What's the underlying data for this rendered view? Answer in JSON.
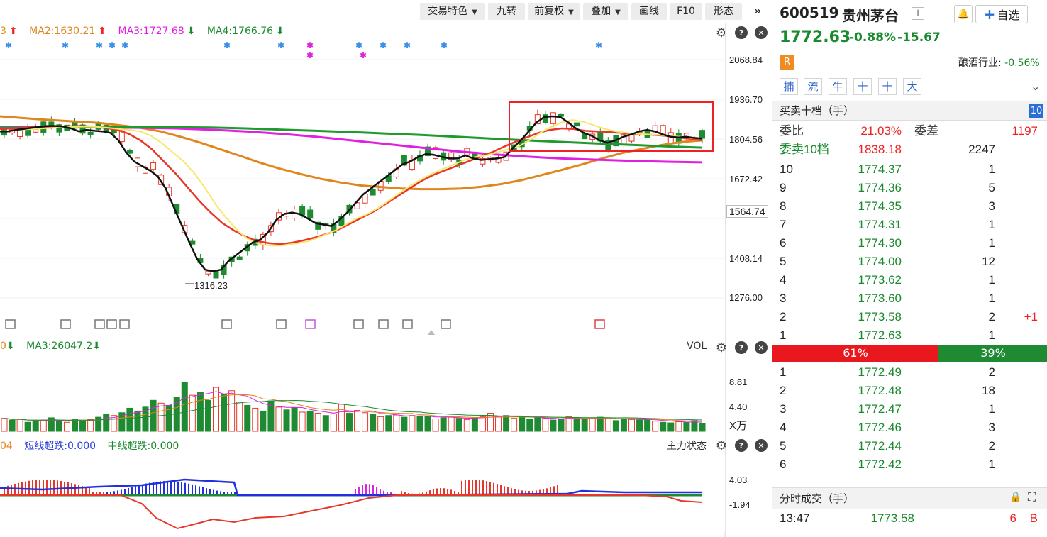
{
  "toolbar": {
    "items": [
      {
        "label": "交易特色",
        "dropdown": true
      },
      {
        "label": "九转",
        "dropdown": false
      },
      {
        "label": "前复权",
        "dropdown": true
      },
      {
        "label": "叠加",
        "dropdown": true
      },
      {
        "label": "画线",
        "dropdown": false
      },
      {
        "label": "F10",
        "dropdown": false
      },
      {
        "label": "形态",
        "dropdown": false
      }
    ],
    "more_icon": "double-chevron-right-icon"
  },
  "kline": {
    "ma_prefix": "3",
    "ma2": "MA2:1630.21",
    "ma3": "MA3:1727.68",
    "ma4": "MA4:1766.76",
    "y_ticks": [
      "2068.84",
      "1936.70",
      "1804.56",
      "1672.42",
      "1564.74",
      "1408.14",
      "1276.00"
    ],
    "current_price_tag": "1564.74",
    "low_annotation": "1316.23",
    "colors": {
      "up": "#e8372a",
      "down": "#1e8a32",
      "ma5": "#111111",
      "ma10": "#f5e96a",
      "ma20": "#e8372a",
      "ma60": "#e0861c",
      "ma120": "#1e9a2e",
      "ma250": "#e020e0"
    },
    "series": {
      "ma5": [
        1830,
        1830,
        1835,
        1838,
        1842,
        1845,
        1848,
        1848,
        1846,
        1840,
        1830,
        1835,
        1832,
        1830,
        1825,
        1800,
        1760,
        1730,
        1715,
        1700,
        1680,
        1640,
        1580,
        1520,
        1460,
        1405,
        1370,
        1365,
        1370,
        1400,
        1420,
        1440,
        1460,
        1470,
        1495,
        1535,
        1555,
        1560,
        1555,
        1540,
        1525,
        1520,
        1515,
        1535,
        1560,
        1590,
        1620,
        1640,
        1660,
        1680,
        1700,
        1720,
        1730,
        1745,
        1755,
        1752,
        1745,
        1740,
        1740,
        1750,
        1740,
        1735,
        1738,
        1740,
        1745,
        1775,
        1800,
        1830,
        1860,
        1878,
        1880,
        1878,
        1860,
        1840,
        1825,
        1815,
        1800,
        1792,
        1800,
        1812,
        1820,
        1830,
        1835,
        1830,
        1820,
        1812,
        1810,
        1812,
        1808,
        1806
      ],
      "ma10": [
        1830,
        1832,
        1836,
        1838,
        1840,
        1842,
        1845,
        1845,
        1846,
        1845,
        1842,
        1838,
        1835,
        1830,
        1815,
        1790,
        1760,
        1730,
        1690,
        1640,
        1585,
        1540,
        1500,
        1470,
        1455,
        1450,
        1450,
        1455,
        1460,
        1470,
        1485,
        1500,
        1520,
        1540,
        1555,
        1575,
        1600,
        1625,
        1650,
        1670,
        1690,
        1705,
        1720,
        1735,
        1745,
        1750,
        1760,
        1770,
        1780,
        1800,
        1825,
        1845,
        1860,
        1868,
        1862,
        1850,
        1838,
        1830,
        1825,
        1822,
        1820,
        1818,
        1815,
        1812,
        1808,
        1805
      ],
      "ma20": [
        1838,
        1840,
        1842,
        1844,
        1845,
        1846,
        1847,
        1848,
        1846,
        1842,
        1835,
        1822,
        1800,
        1770,
        1730,
        1690,
        1645,
        1600,
        1560,
        1525,
        1500,
        1480,
        1465,
        1458,
        1455,
        1460,
        1468,
        1478,
        1490,
        1505,
        1525,
        1545,
        1565,
        1590,
        1615,
        1640,
        1665,
        1685,
        1700,
        1715,
        1730,
        1745,
        1760,
        1778,
        1795,
        1810,
        1825,
        1835,
        1840,
        1838,
        1832,
        1830,
        1828,
        1825,
        1822,
        1820,
        1818,
        1815,
        1810,
        1805,
        1800
      ],
      "ma60": [
        1880,
        1875,
        1870,
        1866,
        1862,
        1858,
        1850,
        1842,
        1830,
        1812,
        1792,
        1770,
        1748,
        1725,
        1705,
        1688,
        1672,
        1660,
        1650,
        1645,
        1640,
        1638,
        1638,
        1640,
        1646,
        1655,
        1668,
        1685,
        1702,
        1720,
        1740,
        1758,
        1772,
        1785,
        1795,
        1800
      ],
      "ma120": [
        1842,
        1843,
        1844,
        1845,
        1845,
        1844,
        1843,
        1840,
        1836,
        1832,
        1828,
        1823,
        1818,
        1812,
        1806,
        1800,
        1795,
        1790,
        1785,
        1780,
        1776
      ],
      "ma250": [
        1845,
        1845,
        1844,
        1843,
        1842,
        1840,
        1836,
        1830,
        1822,
        1812,
        1800,
        1788,
        1776,
        1764,
        1754,
        1746,
        1740,
        1736,
        1732,
        1729,
        1727
      ]
    }
  },
  "volume": {
    "ma_prefix": "0",
    "ma3": "MA3:26047.2",
    "label": "VOL",
    "y_ticks": [
      "8.81",
      "4.40"
    ],
    "unit": "X万",
    "bars": [
      {
        "v": 2.3,
        "up": true
      },
      {
        "v": 2.0,
        "up": false
      },
      {
        "v": 2.1,
        "up": true
      },
      {
        "v": 1.6,
        "up": false
      },
      {
        "v": 1.9,
        "up": false
      },
      {
        "v": 2.0,
        "up": true
      },
      {
        "v": 2.4,
        "up": false
      },
      {
        "v": 1.8,
        "up": false
      },
      {
        "v": 1.6,
        "up": true
      },
      {
        "v": 2.2,
        "up": false
      },
      {
        "v": 1.9,
        "up": false
      },
      {
        "v": 2.1,
        "up": true
      },
      {
        "v": 2.5,
        "up": false
      },
      {
        "v": 3.0,
        "up": false
      },
      {
        "v": 2.8,
        "up": true
      },
      {
        "v": 3.3,
        "up": false
      },
      {
        "v": 4.1,
        "up": false
      },
      {
        "v": 3.6,
        "up": false
      },
      {
        "v": 4.3,
        "up": false
      },
      {
        "v": 5.5,
        "up": false
      },
      {
        "v": 5.0,
        "up": true
      },
      {
        "v": 4.6,
        "up": false
      },
      {
        "v": 6.0,
        "up": false
      },
      {
        "v": 8.7,
        "up": false
      },
      {
        "v": 6.4,
        "up": true
      },
      {
        "v": 6.9,
        "up": false
      },
      {
        "v": 5.5,
        "up": false
      },
      {
        "v": 7.8,
        "up": true
      },
      {
        "v": 6.5,
        "up": false
      },
      {
        "v": 7.2,
        "up": true
      },
      {
        "v": 5.2,
        "up": true
      },
      {
        "v": 4.6,
        "up": false
      },
      {
        "v": 4.1,
        "up": true
      },
      {
        "v": 3.6,
        "up": false
      },
      {
        "v": 5.4,
        "up": false
      },
      {
        "v": 4.3,
        "up": true
      },
      {
        "v": 3.8,
        "up": false
      },
      {
        "v": 4.2,
        "up": false
      },
      {
        "v": 3.4,
        "up": true
      },
      {
        "v": 3.6,
        "up": false
      },
      {
        "v": 3.2,
        "up": true
      },
      {
        "v": 2.8,
        "up": false
      },
      {
        "v": 3.1,
        "up": true
      },
      {
        "v": 4.8,
        "up": true
      },
      {
        "v": 3.2,
        "up": false
      },
      {
        "v": 3.7,
        "up": true
      },
      {
        "v": 3.3,
        "up": true
      },
      {
        "v": 3.0,
        "up": false
      },
      {
        "v": 2.6,
        "up": true
      },
      {
        "v": 2.8,
        "up": false
      },
      {
        "v": 2.9,
        "up": true
      },
      {
        "v": 2.5,
        "up": false
      },
      {
        "v": 2.8,
        "up": true
      },
      {
        "v": 2.7,
        "up": false
      },
      {
        "v": 2.6,
        "up": false
      },
      {
        "v": 2.2,
        "up": true
      },
      {
        "v": 2.4,
        "up": false
      },
      {
        "v": 2.6,
        "up": true
      },
      {
        "v": 2.3,
        "up": false
      },
      {
        "v": 2.1,
        "up": true
      },
      {
        "v": 2.4,
        "up": false
      },
      {
        "v": 2.6,
        "up": true
      },
      {
        "v": 3.2,
        "up": true
      },
      {
        "v": 2.7,
        "up": true
      },
      {
        "v": 2.8,
        "up": false
      },
      {
        "v": 2.3,
        "up": true
      },
      {
        "v": 2.6,
        "up": false
      },
      {
        "v": 2.2,
        "up": false
      },
      {
        "v": 2.5,
        "up": false
      },
      {
        "v": 2.3,
        "up": true
      },
      {
        "v": 2.0,
        "up": false
      },
      {
        "v": 2.2,
        "up": false
      },
      {
        "v": 2.6,
        "up": true
      },
      {
        "v": 2.4,
        "up": false
      },
      {
        "v": 2.1,
        "up": false
      },
      {
        "v": 2.2,
        "up": true
      },
      {
        "v": 2.5,
        "up": false
      },
      {
        "v": 2.3,
        "up": true
      },
      {
        "v": 1.9,
        "up": false
      },
      {
        "v": 2.2,
        "up": false
      },
      {
        "v": 2.1,
        "up": true
      },
      {
        "v": 2.0,
        "up": false
      },
      {
        "v": 2.2,
        "up": false
      },
      {
        "v": 1.8,
        "up": true
      },
      {
        "v": 1.6,
        "up": false
      },
      {
        "v": 1.5,
        "up": false
      },
      {
        "v": 1.7,
        "up": true
      },
      {
        "v": 1.6,
        "up": false
      },
      {
        "v": 1.9,
        "up": false
      },
      {
        "v": 1.4,
        "up": false
      }
    ]
  },
  "indicator": {
    "prefix": "04",
    "short": "短线超跌:0.000",
    "mid": "中线超跌:0.000",
    "label": "主力状态",
    "y_ticks": [
      "4.03",
      "-1.94"
    ]
  },
  "quote": {
    "code": "600519",
    "name": "贵州茅台",
    "price": "1772.63",
    "change_pct": "-0.88%",
    "change": "-15.67",
    "badge": "R",
    "industry_label": "酿酒行业:",
    "industry_change": "-0.56%",
    "fav_label": "自选",
    "tags": [
      "捕",
      "流",
      "牛",
      "十",
      "十",
      "大"
    ]
  },
  "orderbook": {
    "title": "买卖十档（手）",
    "depth_badge": "10",
    "weibi_label": "委比",
    "weibi_value": "21.03%",
    "weicha_label": "委差",
    "weicha_value": "1197",
    "sell10_label": "委卖10档",
    "sell10_price": "1838.18",
    "sell10_vol": "2247",
    "asks": [
      {
        "lvl": "10",
        "price": "1774.37",
        "vol": "1",
        "chg": ""
      },
      {
        "lvl": "9",
        "price": "1774.36",
        "vol": "5",
        "chg": ""
      },
      {
        "lvl": "8",
        "price": "1774.35",
        "vol": "3",
        "chg": ""
      },
      {
        "lvl": "7",
        "price": "1774.31",
        "vol": "1",
        "chg": ""
      },
      {
        "lvl": "6",
        "price": "1774.30",
        "vol": "1",
        "chg": ""
      },
      {
        "lvl": "5",
        "price": "1774.00",
        "vol": "12",
        "chg": ""
      },
      {
        "lvl": "4",
        "price": "1773.62",
        "vol": "1",
        "chg": ""
      },
      {
        "lvl": "3",
        "price": "1773.60",
        "vol": "1",
        "chg": ""
      },
      {
        "lvl": "2",
        "price": "1773.58",
        "vol": "2",
        "chg": "+1"
      },
      {
        "lvl": "1",
        "price": "1772.63",
        "vol": "1",
        "chg": ""
      }
    ],
    "ratio_red": "61%",
    "ratio_green": "39%",
    "bids": [
      {
        "lvl": "1",
        "price": "1772.49",
        "vol": "2"
      },
      {
        "lvl": "2",
        "price": "1772.48",
        "vol": "18"
      },
      {
        "lvl": "3",
        "price": "1772.47",
        "vol": "1"
      },
      {
        "lvl": "4",
        "price": "1772.46",
        "vol": "3"
      },
      {
        "lvl": "5",
        "price": "1772.44",
        "vol": "2"
      },
      {
        "lvl": "6",
        "price": "1772.42",
        "vol": "1"
      }
    ]
  },
  "trades": {
    "title": "分时成交（手）",
    "rows": [
      {
        "time": "13:47",
        "price": "1773.58",
        "vol": "6",
        "side": "B"
      }
    ]
  }
}
